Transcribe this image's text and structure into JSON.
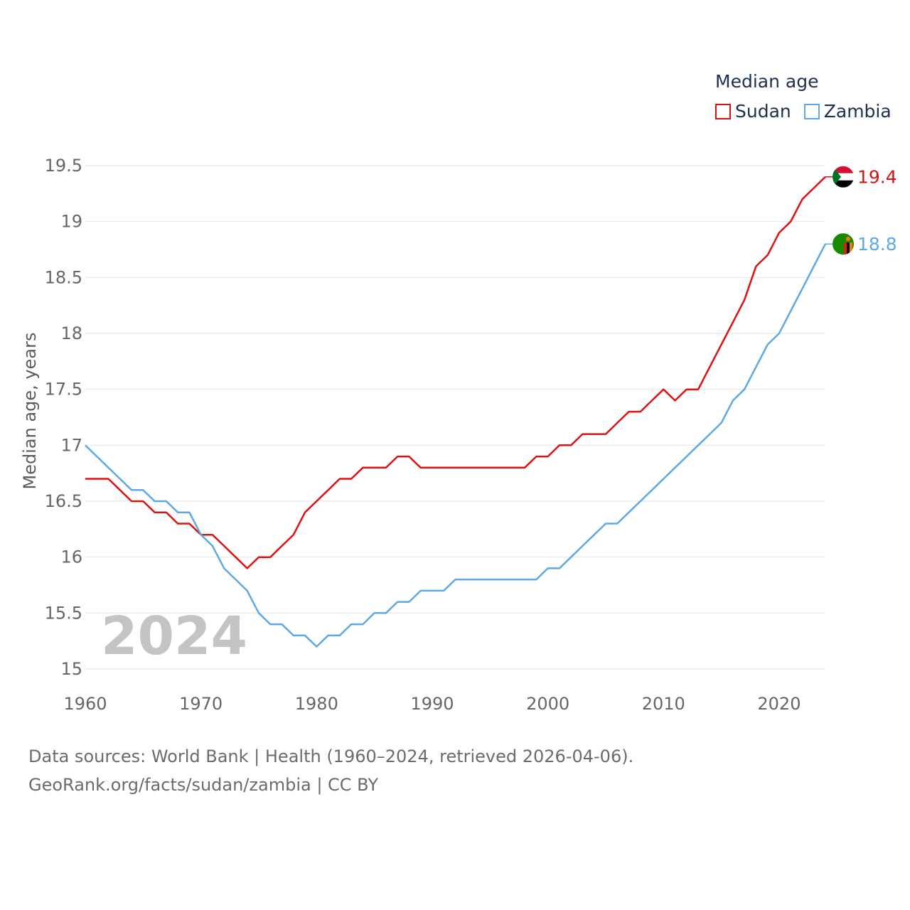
{
  "legend": {
    "title": "Median age",
    "sudan_label": "Sudan",
    "zambia_label": "Zambia",
    "sudan_color": "#e01010",
    "zambia_color": "#5fa8e6"
  },
  "year_watermark": "2024",
  "source": {
    "line1": "Data sources: World Bank | Health (1960–2024, retrieved 2026-04-06).",
    "line2": "GeoRank.org/facts/sudan/zambia | CC BY"
  },
  "chart_data": {
    "type": "line",
    "title": "Median age",
    "xlabel": "",
    "ylabel": "Median age, years",
    "xlim": [
      1960,
      2024
    ],
    "ylim": [
      15,
      19.5
    ],
    "x_ticks": [
      1960,
      1970,
      1980,
      1990,
      2000,
      2010,
      2020
    ],
    "y_ticks": [
      15,
      15.5,
      16,
      16.5,
      17,
      17.5,
      18,
      18.5,
      19,
      19.5
    ],
    "y_tick_labels": [
      "15",
      "15.5",
      "16",
      "16.5",
      "17",
      "17.5",
      "18",
      "18.5",
      "19",
      "19.5"
    ],
    "grid": true,
    "legend_position": "top-right",
    "x": [
      1960,
      1961,
      1962,
      1963,
      1964,
      1965,
      1966,
      1967,
      1968,
      1969,
      1970,
      1971,
      1972,
      1973,
      1974,
      1975,
      1976,
      1977,
      1978,
      1979,
      1980,
      1981,
      1982,
      1983,
      1984,
      1985,
      1986,
      1987,
      1988,
      1989,
      1990,
      1991,
      1992,
      1993,
      1994,
      1995,
      1996,
      1997,
      1998,
      1999,
      2000,
      2001,
      2002,
      2003,
      2004,
      2005,
      2006,
      2007,
      2008,
      2009,
      2010,
      2011,
      2012,
      2013,
      2014,
      2015,
      2016,
      2017,
      2018,
      2019,
      2020,
      2021,
      2022,
      2023,
      2024
    ],
    "series": [
      {
        "name": "Sudan",
        "color": "#e01010",
        "end_label": "19.4",
        "values": [
          16.7,
          16.7,
          16.7,
          16.6,
          16.5,
          16.5,
          16.4,
          16.4,
          16.3,
          16.3,
          16.2,
          16.2,
          16.1,
          16.0,
          15.9,
          16.0,
          16.0,
          16.1,
          16.2,
          16.4,
          16.5,
          16.6,
          16.7,
          16.7,
          16.8,
          16.8,
          16.8,
          16.9,
          16.9,
          16.8,
          16.8,
          16.8,
          16.8,
          16.8,
          16.8,
          16.8,
          16.8,
          16.8,
          16.8,
          16.9,
          16.9,
          17.0,
          17.0,
          17.1,
          17.1,
          17.1,
          17.2,
          17.3,
          17.3,
          17.4,
          17.5,
          17.4,
          17.5,
          17.5,
          17.7,
          17.9,
          18.1,
          18.3,
          18.6,
          18.7,
          18.9,
          19.0,
          19.2,
          19.3,
          19.4
        ]
      },
      {
        "name": "Zambia",
        "color": "#5fa8e6",
        "end_label": "18.8",
        "values": [
          17.0,
          16.9,
          16.8,
          16.7,
          16.6,
          16.6,
          16.5,
          16.5,
          16.4,
          16.4,
          16.2,
          16.1,
          15.9,
          15.8,
          15.7,
          15.5,
          15.4,
          15.4,
          15.3,
          15.3,
          15.2,
          15.3,
          15.3,
          15.4,
          15.4,
          15.5,
          15.5,
          15.6,
          15.6,
          15.7,
          15.7,
          15.7,
          15.8,
          15.8,
          15.8,
          15.8,
          15.8,
          15.8,
          15.8,
          15.8,
          15.9,
          15.9,
          16.0,
          16.1,
          16.2,
          16.3,
          16.3,
          16.4,
          16.5,
          16.6,
          16.7,
          16.8,
          16.9,
          17.0,
          17.1,
          17.2,
          17.4,
          17.5,
          17.7,
          17.9,
          18.0,
          18.2,
          18.4,
          18.6,
          18.8
        ]
      }
    ]
  }
}
